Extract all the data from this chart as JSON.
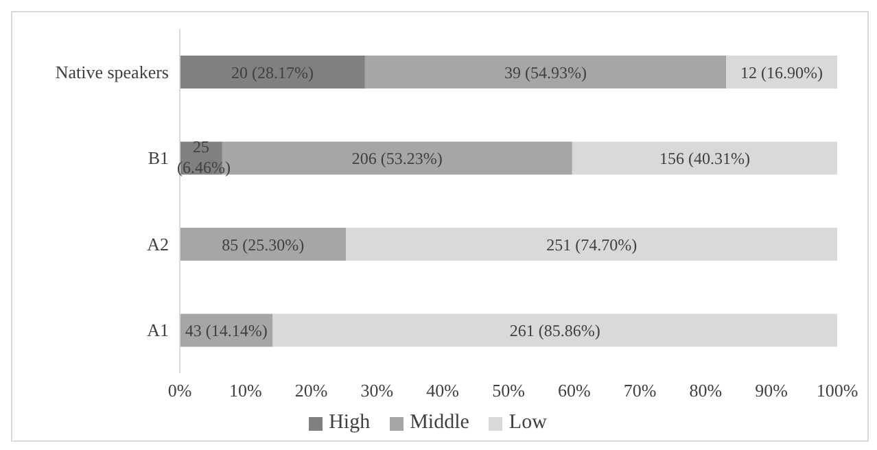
{
  "chart_data": {
    "type": "bar",
    "orientation": "horizontal",
    "stacked": true,
    "categories": [
      "Native speakers",
      "B1",
      "A2",
      "A1"
    ],
    "series": [
      {
        "name": "High",
        "color": "#808080",
        "values": [
          28.17,
          6.46,
          null,
          null
        ],
        "value_labels": [
          "20 (28.17%)",
          "25 (6.46%)",
          null,
          null
        ]
      },
      {
        "name": "Middle",
        "color": "#a6a6a6",
        "values": [
          54.93,
          53.23,
          25.3,
          14.14
        ],
        "value_labels": [
          "39 (54.93%)",
          "206 (53.23%)",
          "85 (25.30%)",
          "43 (14.14%)"
        ]
      },
      {
        "name": "Low",
        "color": "#d9d9d9",
        "values": [
          16.9,
          40.31,
          74.7,
          85.86
        ],
        "value_labels": [
          "12 (16.90%)",
          "156 (40.31%)",
          "251 (74.70%)",
          "261 (85.86%)"
        ]
      }
    ],
    "xlim": [
      0,
      100
    ],
    "xticks": [
      {
        "value": 0,
        "label": "0%"
      },
      {
        "value": 10,
        "label": "10%"
      },
      {
        "value": 20,
        "label": "20%"
      },
      {
        "value": 30,
        "label": "30%"
      },
      {
        "value": 40,
        "label": "40%"
      },
      {
        "value": 50,
        "label": "50%"
      },
      {
        "value": 60,
        "label": "60%"
      },
      {
        "value": 70,
        "label": "70%"
      },
      {
        "value": 80,
        "label": "80%"
      },
      {
        "value": 90,
        "label": "90%"
      },
      {
        "value": 100,
        "label": "100%"
      }
    ],
    "grid": false,
    "legend": "bottom"
  }
}
